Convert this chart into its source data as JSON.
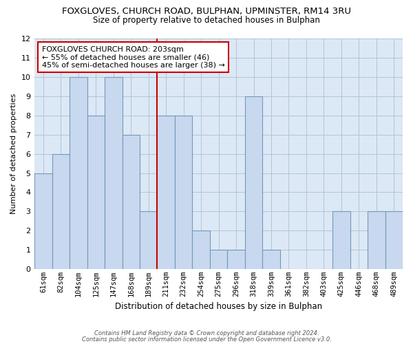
{
  "title": "FOXGLOVES, CHURCH ROAD, BULPHAN, UPMINSTER, RM14 3RU",
  "subtitle": "Size of property relative to detached houses in Bulphan",
  "xlabel": "Distribution of detached houses by size in Bulphan",
  "ylabel": "Number of detached properties",
  "bin_labels": [
    "61sqm",
    "82sqm",
    "104sqm",
    "125sqm",
    "147sqm",
    "168sqm",
    "189sqm",
    "211sqm",
    "232sqm",
    "254sqm",
    "275sqm",
    "296sqm",
    "318sqm",
    "339sqm",
    "361sqm",
    "382sqm",
    "403sqm",
    "425sqm",
    "446sqm",
    "468sqm",
    "489sqm"
  ],
  "bar_heights": [
    5,
    6,
    10,
    8,
    10,
    7,
    3,
    8,
    8,
    2,
    1,
    1,
    9,
    1,
    0,
    0,
    0,
    3,
    0,
    3,
    3
  ],
  "bar_color": "#c8d8ee",
  "bar_edge_color": "#7099bb",
  "marker_line_color": "#cc0000",
  "annotation_line1": "FOXGLOVES CHURCH ROAD: 203sqm",
  "annotation_line2": "← 55% of detached houses are smaller (46)",
  "annotation_line3": "45% of semi-detached houses are larger (38) →",
  "annotation_box_color": "#ffffff",
  "annotation_box_edge": "#cc0000",
  "ylim": [
    0,
    12
  ],
  "yticks": [
    0,
    1,
    2,
    3,
    4,
    5,
    6,
    7,
    8,
    9,
    10,
    11,
    12
  ],
  "footer_line1": "Contains HM Land Registry data © Crown copyright and database right 2024.",
  "footer_line2": "Contains public sector information licensed under the Open Government Licence v3.0.",
  "plot_bg_color": "#dce8f5",
  "fig_bg_color": "#ffffff",
  "grid_color": "#b0c4d8",
  "title_fontsize": 9.5,
  "subtitle_fontsize": 8.5
}
